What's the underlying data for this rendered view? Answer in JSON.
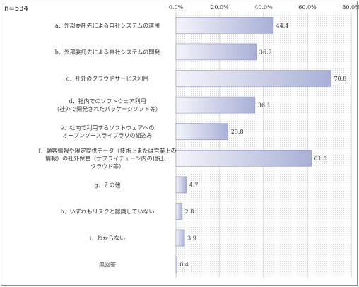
{
  "sample_label": "n=534",
  "chart_data": {
    "type": "bar",
    "orientation": "horizontal",
    "xlim": [
      0,
      80
    ],
    "ticks": [
      "0.0%",
      "20.0%",
      "40.0%",
      "60.0%",
      "80.0%"
    ],
    "tick_values": [
      0,
      20,
      40,
      60,
      80
    ],
    "grid": true,
    "categories": [
      [
        "a．外部委託先による自社システムの運用"
      ],
      [
        "b．外部委託先による自社システムの開発"
      ],
      [
        "c．社外のクラウドサービス利用"
      ],
      [
        "d．社内でのソフトウェア利用",
        "（社外で開発されたパッケージソフト等）"
      ],
      [
        "e．社内で利用するソフトウェアへの",
        "オープンソースライブラリの組込み"
      ],
      [
        "f．顧客情報や限定提供データ（技術上または営業上の",
        "情報）の社外保管（サプライチェーン内の他社、",
        "クラウド等）"
      ],
      [
        "g．その他"
      ],
      [
        "h．いずれもリスクと認識していない"
      ],
      [
        "i．わからない"
      ],
      [
        "無回答"
      ]
    ],
    "values": [
      44.4,
      36.7,
      70.8,
      36.1,
      23.8,
      61.8,
      4.7,
      2.8,
      3.9,
      0.4
    ],
    "value_labels": [
      "44.4",
      "36.7",
      "70.8",
      "36.1",
      "23.8",
      "61.8",
      "4.7",
      "2.8",
      "3.9",
      "0.4"
    ],
    "colors": {
      "bar_light": "#f4f5fb",
      "bar_dark": "#a9b0d6",
      "bar_stroke": "#8d94c0",
      "grid": "#b5b5b5"
    }
  }
}
